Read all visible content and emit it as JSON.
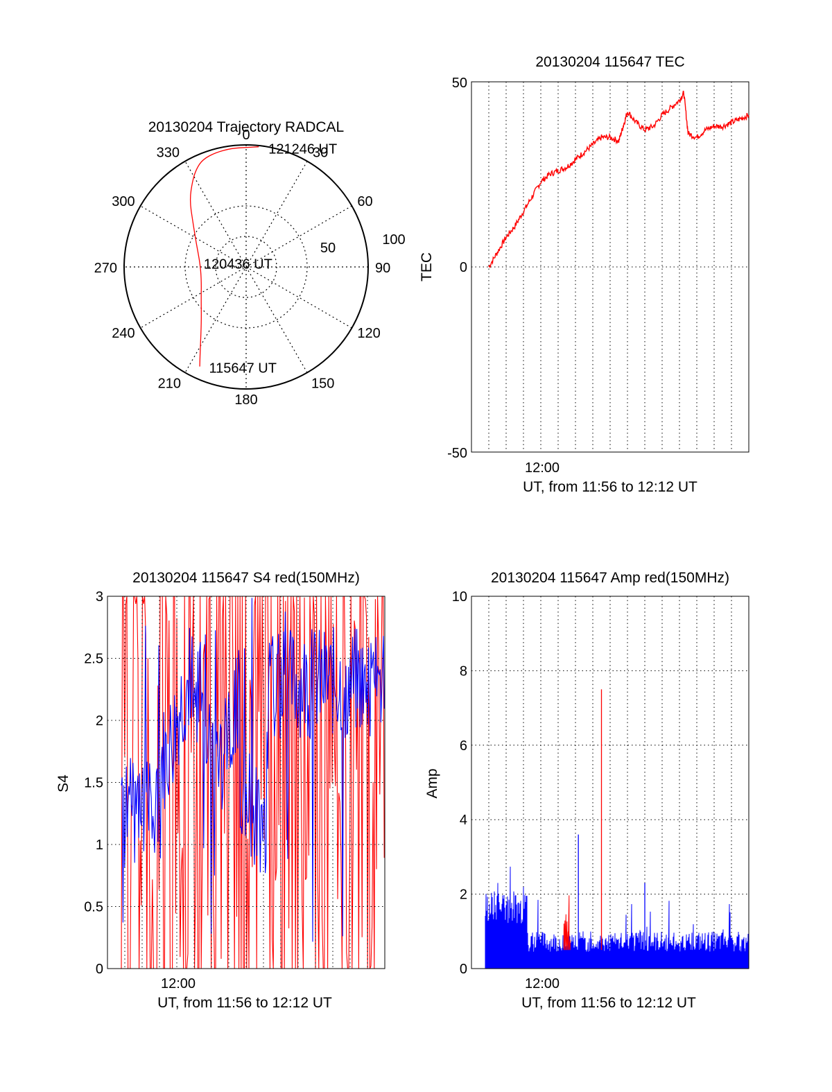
{
  "chart_data": [
    {
      "id": "trajectory",
      "type": "polar",
      "title": "20130204 Trajectory RADCAL",
      "angle_labels": [
        {
          "deg": 0,
          "text": "0"
        },
        {
          "deg": 30,
          "text": "30"
        },
        {
          "deg": 60,
          "text": "60"
        },
        {
          "deg": 90,
          "text": "90"
        },
        {
          "deg": 120,
          "text": "120"
        },
        {
          "deg": 150,
          "text": "150"
        },
        {
          "deg": 180,
          "text": "180"
        },
        {
          "deg": 210,
          "text": "210"
        },
        {
          "deg": 240,
          "text": "240"
        },
        {
          "deg": 270,
          "text": "270"
        },
        {
          "deg": 300,
          "text": "300"
        },
        {
          "deg": 330,
          "text": "330"
        }
      ],
      "radial_labels": [
        "50",
        "100"
      ],
      "radial_max": 100,
      "path": [
        {
          "az": 205,
          "r": 90
        },
        {
          "az": 210,
          "r": 75
        },
        {
          "az": 220,
          "r": 57
        },
        {
          "az": 235,
          "r": 45
        },
        {
          "az": 255,
          "r": 38
        },
        {
          "az": 275,
          "r": 38
        },
        {
          "az": 295,
          "r": 45
        },
        {
          "az": 310,
          "r": 57
        },
        {
          "az": 320,
          "r": 72
        },
        {
          "az": 328,
          "r": 83
        },
        {
          "az": 333,
          "r": 90
        },
        {
          "az": 338,
          "r": 95
        },
        {
          "az": 345,
          "r": 97
        },
        {
          "az": 353,
          "r": 98
        },
        {
          "az": 1,
          "r": 98
        },
        {
          "az": 6,
          "r": 99
        }
      ],
      "annotations": [
        {
          "text": "121246 UT",
          "az": 10,
          "r": 99
        },
        {
          "text": "120436 UT",
          "az": 275,
          "r": 36
        },
        {
          "text": "115647 UT",
          "az": 201,
          "r": 88
        }
      ],
      "color": "#ff0000"
    },
    {
      "id": "tec",
      "type": "line",
      "title": "20130204 115647 TEC",
      "ylabel": "TEC",
      "xlabel": "UT, from 11:56 to 12:12 UT",
      "xtick_label": "12:00",
      "xlim": [
        "11:56",
        "12:12"
      ],
      "ylim": [
        -50,
        50
      ],
      "yticks": [
        "50",
        "0",
        "-50"
      ],
      "color": "#ff0000",
      "series": [
        {
          "x": [
            "11:57",
            "11:57:30",
            "11:58",
            "11:58:30",
            "11:59",
            "11:59:30",
            "12:00",
            "12:00:30",
            "12:01",
            "12:01:30",
            "12:02",
            "12:02:30",
            "12:03",
            "12:03:30",
            "12:04",
            "12:04:30",
            "12:04:45",
            "12:05",
            "12:05:30",
            "12:06",
            "12:06:30",
            "12:07",
            "12:07:30",
            "12:08",
            "12:08:15",
            "12:08:30",
            "12:09",
            "12:09:30",
            "12:10",
            "12:10:30",
            "12:11",
            "12:11:30",
            "12:12"
          ],
          "values": [
            0,
            4,
            8,
            11,
            15,
            19,
            23,
            25,
            26,
            27,
            29,
            31,
            33,
            35,
            35,
            34,
            38,
            42,
            39,
            37,
            38,
            41,
            43,
            45,
            47,
            36,
            35,
            37,
            38,
            38,
            39,
            40,
            41
          ]
        }
      ]
    },
    {
      "id": "s4",
      "type": "line",
      "title": "20130204 115647 S4 red(150MHz)",
      "ylabel": "S4",
      "xlabel": "UT, from 11:56 to 12:12 UT",
      "xtick_label": "12:00",
      "xlim": [
        "11:56",
        "12:12"
      ],
      "ylim": [
        0,
        3
      ],
      "yticks": [
        "3",
        "2.5",
        "2",
        "1.5",
        "1",
        "0.5",
        "0"
      ],
      "series_colors": [
        "#ff0000",
        "#0000ff"
      ]
    },
    {
      "id": "amp",
      "type": "line",
      "title": "20130204 115647 Amp red(150MHz)",
      "ylabel": "Amp",
      "xlabel": "UT, from 11:56 to 12:12 UT",
      "xtick_label": "12:00",
      "xlim": [
        "11:56",
        "12:12"
      ],
      "ylim": [
        0,
        10
      ],
      "yticks": [
        "10",
        "8",
        "6",
        "4",
        "2",
        "0"
      ],
      "series_colors": [
        "#ff0000",
        "#0000ff"
      ],
      "peaks": [
        {
          "x": "12:02:10",
          "value": 3.6,
          "color": "#0000ff"
        },
        {
          "x": "12:03:30",
          "value": 7.5,
          "color": "#ff0000"
        },
        {
          "x": "12:06",
          "value": 2.3,
          "color": "#0000ff"
        }
      ]
    }
  ]
}
